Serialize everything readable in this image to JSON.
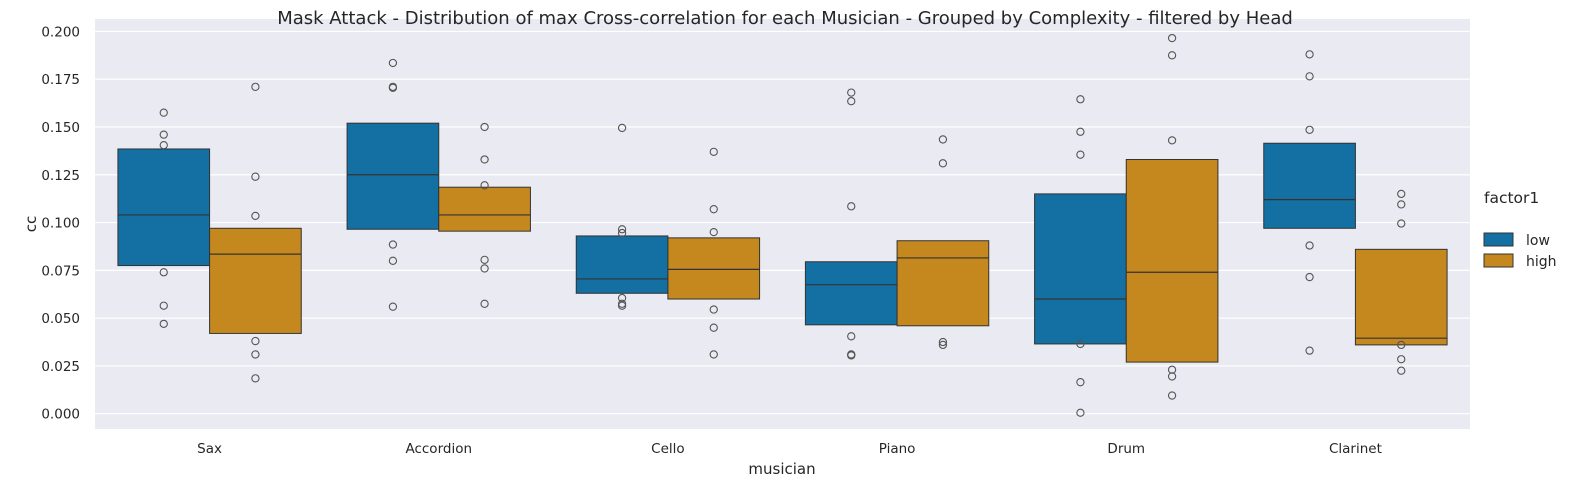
{
  "chart_data": {
    "type": "box",
    "title": "Mask Attack - Distribution of max Cross-correlation for each Musician - Grouped by Complexity - filtered by Head",
    "xlabel": "musician",
    "ylabel": "cc",
    "ylim": [
      -0.008,
      0.2065
    ],
    "yticks": [
      0.0,
      0.025,
      0.05,
      0.075,
      0.1,
      0.125,
      0.15,
      0.175,
      0.2
    ],
    "ytick_labels": [
      "0.000",
      "0.025",
      "0.050",
      "0.075",
      "0.100",
      "0.125",
      "0.150",
      "0.175",
      "0.200"
    ],
    "grid": true,
    "legend": {
      "title": "factor1",
      "position": "right"
    },
    "categories": [
      "Sax",
      "Accordion",
      "Cello",
      "Piano",
      "Drum",
      "Clarinet"
    ],
    "series": [
      {
        "name": "low",
        "color": "#1470a3",
        "boxes": [
          {
            "q1": 0.0775,
            "median": 0.104,
            "q3": 0.1385,
            "whislo": 0.0775,
            "whishi": 0.1385,
            "fliers": [
              0.1575,
              0.146,
              0.1405,
              0.074,
              0.0565,
              0.047
            ]
          },
          {
            "q1": 0.0965,
            "median": 0.125,
            "q3": 0.152,
            "whislo": 0.0965,
            "whishi": 0.152,
            "fliers": [
              0.1835,
              0.171,
              0.1705,
              0.0885,
              0.08,
              0.056
            ]
          },
          {
            "q1": 0.063,
            "median": 0.0705,
            "q3": 0.093,
            "whislo": 0.063,
            "whishi": 0.093,
            "fliers": [
              0.1495,
              0.0965,
              0.0945,
              0.0605,
              0.0575,
              0.0565
            ]
          },
          {
            "q1": 0.0465,
            "median": 0.0675,
            "q3": 0.0795,
            "whislo": 0.0465,
            "whishi": 0.0795,
            "fliers": [
              0.168,
              0.1635,
              0.1085,
              0.0405,
              0.031,
              0.0305
            ]
          },
          {
            "q1": 0.0365,
            "median": 0.06,
            "q3": 0.115,
            "whislo": 0.0365,
            "whishi": 0.115,
            "fliers": [
              0.1645,
              0.1475,
              0.1355,
              0.0365,
              0.0165,
              0.0005
            ]
          },
          {
            "q1": 0.097,
            "median": 0.112,
            "q3": 0.1415,
            "whislo": 0.097,
            "whishi": 0.1415,
            "fliers": [
              0.188,
              0.1765,
              0.1485,
              0.088,
              0.0715,
              0.033
            ]
          }
        ]
      },
      {
        "name": "high",
        "color": "#c4881f",
        "boxes": [
          {
            "q1": 0.042,
            "median": 0.0835,
            "q3": 0.097,
            "whislo": 0.042,
            "whishi": 0.097,
            "fliers": [
              0.171,
              0.124,
              0.1035,
              0.038,
              0.031,
              0.0185
            ]
          },
          {
            "q1": 0.0955,
            "median": 0.104,
            "q3": 0.1185,
            "whislo": 0.0955,
            "whishi": 0.1185,
            "fliers": [
              0.15,
              0.133,
              0.1195,
              0.0805,
              0.076,
              0.0575
            ]
          },
          {
            "q1": 0.06,
            "median": 0.0755,
            "q3": 0.092,
            "whislo": 0.06,
            "whishi": 0.092,
            "fliers": [
              0.137,
              0.107,
              0.095,
              0.0545,
              0.045,
              0.031
            ]
          },
          {
            "q1": 0.046,
            "median": 0.0815,
            "q3": 0.0905,
            "whislo": 0.046,
            "whishi": 0.0905,
            "fliers": [
              0.1435,
              0.131,
              0.0375,
              0.036
            ]
          },
          {
            "q1": 0.027,
            "median": 0.074,
            "q3": 0.133,
            "whislo": 0.027,
            "whishi": 0.133,
            "fliers": [
              0.1965,
              0.1875,
              0.143,
              0.023,
              0.0195,
              0.0095
            ]
          },
          {
            "q1": 0.036,
            "median": 0.0395,
            "q3": 0.086,
            "whislo": 0.036,
            "whishi": 0.086,
            "fliers": [
              0.115,
              0.1095,
              0.0995,
              0.036,
              0.0285,
              0.0225
            ]
          }
        ]
      }
    ]
  }
}
